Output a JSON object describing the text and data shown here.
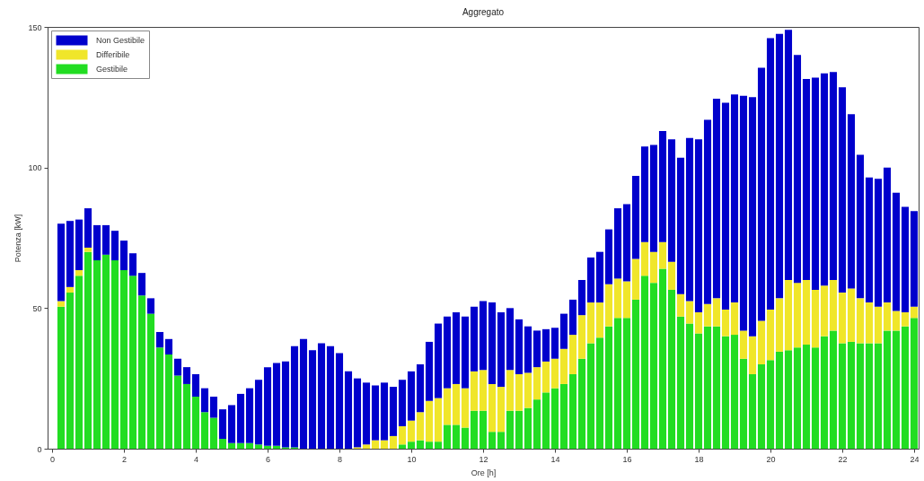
{
  "chart_data": {
    "type": "bar",
    "title": "Aggregato",
    "xlabel": "Ore [h]",
    "ylabel": "Potenza [kW]",
    "stacked": true,
    "legend": "top left",
    "x": [
      0.25,
      0.5,
      0.75,
      1,
      1.25,
      1.5,
      1.75,
      2,
      2.25,
      2.5,
      2.75,
      3,
      3.25,
      3.5,
      3.75,
      4,
      4.25,
      4.5,
      4.75,
      5,
      5.25,
      5.5,
      5.75,
      6,
      6.25,
      6.5,
      6.75,
      7,
      7.25,
      7.5,
      7.75,
      8,
      8.25,
      8.5,
      8.75,
      9,
      9.25,
      9.5,
      9.75,
      10,
      10.25,
      10.5,
      10.75,
      11,
      11.25,
      11.5,
      11.75,
      12,
      12.25,
      12.5,
      12.75,
      13,
      13.25,
      13.5,
      13.75,
      14,
      14.25,
      14.5,
      14.75,
      15,
      15.25,
      15.5,
      15.75,
      16,
      16.25,
      16.5,
      16.75,
      17,
      17.25,
      17.5,
      17.75,
      18,
      18.25,
      18.5,
      18.75,
      19,
      19.25,
      19.5,
      19.75,
      20,
      20.25,
      20.5,
      20.75,
      21,
      21.25,
      21.5,
      21.75,
      22,
      22.25,
      22.5,
      22.75,
      23,
      23.25,
      23.5,
      23.75,
      24
    ],
    "series": [
      {
        "name": "Gestibile",
        "color": "#22dd22",
        "values": [
          50.5,
          55.5,
          61.5,
          70,
          67,
          69,
          67,
          63.5,
          61.5,
          54.5,
          48,
          36,
          33.5,
          26,
          23,
          18.5,
          13,
          11,
          3.5,
          2,
          2,
          2,
          1.5,
          1,
          1,
          0.5,
          0.5,
          0,
          0,
          0,
          0,
          0,
          0,
          0,
          0,
          0,
          0,
          0,
          1.5,
          2.5,
          3,
          2.5,
          2.5,
          8.5,
          8.5,
          7.5,
          13.5,
          13.5,
          6,
          6,
          13.5,
          13.5,
          14.5,
          17.5,
          20,
          21.5,
          23,
          26.5,
          32,
          37.5,
          39.5,
          43.5,
          46.5,
          46.5,
          53,
          61.5,
          59,
          64,
          56.5,
          47,
          44.5,
          41,
          43.5,
          43.5,
          40,
          40.5,
          32,
          26.5,
          30,
          31.5,
          34.5,
          35,
          36,
          37,
          36,
          40,
          42,
          37.5,
          38,
          37.5,
          37.5,
          37.5,
          42,
          42,
          43.5,
          46.5
        ]
      },
      {
        "name": "Differibile",
        "color": "#f0e62a",
        "values": [
          2,
          2,
          2,
          1.5,
          0,
          0,
          0,
          0,
          0,
          0,
          0,
          0,
          0,
          0,
          0,
          0,
          0,
          0,
          0,
          0,
          0,
          0,
          0,
          0,
          0,
          0,
          0,
          0,
          0,
          0,
          0,
          0,
          0,
          0.5,
          1.5,
          3,
          3,
          4.5,
          6.5,
          7.5,
          10,
          14.5,
          15.5,
          13,
          14.5,
          14,
          14,
          14.5,
          17,
          16,
          14.5,
          13,
          12.5,
          11.5,
          11,
          10.5,
          12.5,
          14,
          15.5,
          14.5,
          12.5,
          15,
          14,
          13,
          14.5,
          12,
          11,
          9.5,
          10,
          8,
          8,
          7.5,
          8,
          10,
          9.5,
          11.5,
          10,
          13.5,
          15.5,
          18,
          19,
          25,
          23,
          23,
          20.5,
          18,
          18,
          18,
          19,
          16,
          14.5,
          13,
          10,
          7,
          5,
          4
        ]
      },
      {
        "name": "Non Gestibile",
        "color": "#0000cc",
        "values": [
          27.5,
          23.5,
          18,
          14,
          12.5,
          10.5,
          10.5,
          10.5,
          8,
          8,
          5.5,
          5.5,
          5.5,
          6,
          6,
          8,
          8.5,
          7.5,
          10.5,
          13.5,
          17.5,
          19.5,
          23,
          28,
          29.5,
          30.5,
          36,
          39,
          35,
          37.5,
          36.5,
          34,
          27.5,
          24.5,
          22,
          19.5,
          20.5,
          17.5,
          16.5,
          17.5,
          17,
          21,
          26.5,
          25.5,
          25.5,
          25.5,
          23,
          24.5,
          29,
          26.5,
          22,
          19.5,
          16.5,
          13,
          11.5,
          11,
          12.5,
          12.5,
          12.5,
          16,
          18,
          19.5,
          25,
          27.5,
          29.5,
          34,
          38,
          39.5,
          43.5,
          48.5,
          58,
          61.5,
          65.5,
          71,
          73.5,
          74,
          83.5,
          85,
          90,
          96.5,
          94,
          89,
          81,
          71.5,
          75.5,
          75.5,
          74,
          73,
          62,
          51,
          44.5,
          45.5,
          48,
          42,
          37.5,
          34
        ]
      }
    ],
    "xlim": [
      0,
      24
    ],
    "xticks": [
      0,
      2,
      4,
      6,
      8,
      10,
      12,
      14,
      16,
      18,
      20,
      22,
      24
    ],
    "ylim": [
      0,
      150
    ],
    "yticks": [
      0,
      50,
      100,
      150
    ]
  }
}
